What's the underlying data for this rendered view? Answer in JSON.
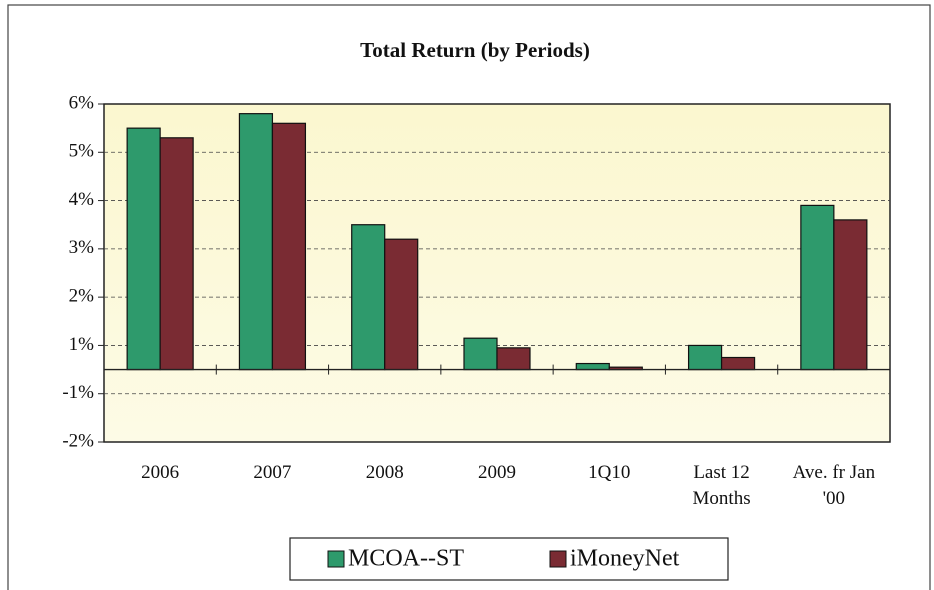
{
  "chart_data": {
    "type": "bar",
    "title": "Total Return (by Periods)",
    "categories": [
      "2006",
      "2007",
      "2008",
      "2009",
      "1Q10",
      "Last 12 Months",
      "Ave. fr Jan '00"
    ],
    "series": [
      {
        "name": "MCOA--ST",
        "color": "#2e9a6c",
        "values": [
          5.5,
          5.8,
          3.5,
          1.15,
          0.25,
          1.0,
          3.9
        ]
      },
      {
        "name": "iMoneyNet",
        "color": "#7a2b33",
        "values": [
          5.3,
          5.6,
          3.2,
          0.9,
          0.1,
          0.5,
          3.6
        ]
      }
    ],
    "yticks": [
      {
        "value": 6,
        "label": "6%"
      },
      {
        "value": 5,
        "label": "5%"
      },
      {
        "value": 4,
        "label": "4%"
      },
      {
        "value": 3,
        "label": "3%"
      },
      {
        "value": 2,
        "label": "2%"
      },
      {
        "value": 1,
        "label": "1%"
      },
      {
        "value": -1,
        "label": "-1%"
      },
      {
        "value": -2,
        "label": "-2%"
      }
    ],
    "ylim": [
      -2,
      6
    ],
    "grid": true
  }
}
